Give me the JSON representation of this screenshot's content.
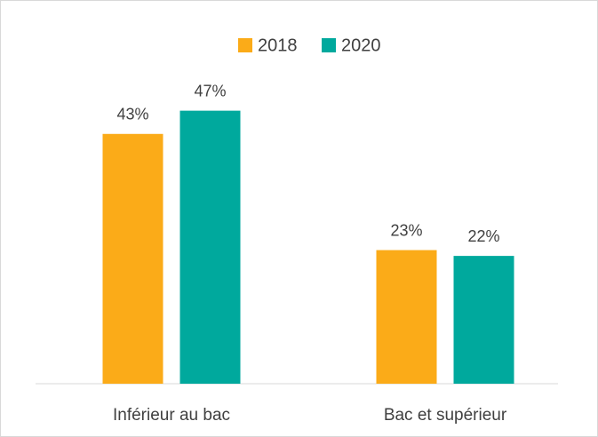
{
  "chart_data": {
    "type": "bar",
    "categories": [
      "Inférieur au bac",
      "Bac et supérieur"
    ],
    "series": [
      {
        "name": "2018",
        "color": "#fbab18",
        "values": [
          43,
          23
        ],
        "value_labels": [
          "43%",
          "23%"
        ]
      },
      {
        "name": "2020",
        "color": "#00a99d",
        "values": [
          47,
          22
        ],
        "value_labels": [
          "47%",
          "22%"
        ]
      }
    ],
    "ylim": [
      0,
      50
    ],
    "legend": "top"
  }
}
